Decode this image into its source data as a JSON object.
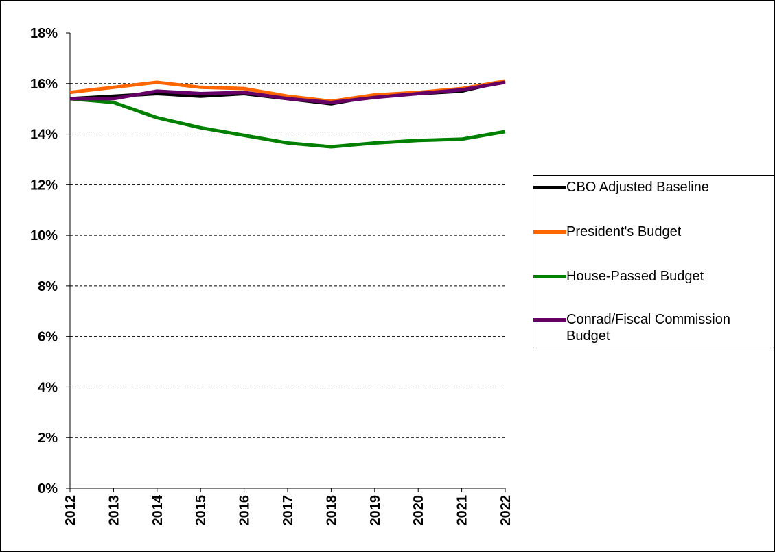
{
  "chart_data": {
    "type": "line",
    "x": [
      "2012",
      "2013",
      "2014",
      "2015",
      "2016",
      "2017",
      "2018",
      "2019",
      "2020",
      "2021",
      "2022"
    ],
    "series": [
      {
        "name": "CBO Adjusted Baseline",
        "color": "#000000",
        "values": [
          15.4,
          15.5,
          15.6,
          15.5,
          15.6,
          15.4,
          15.2,
          15.5,
          15.6,
          15.7,
          16.1
        ]
      },
      {
        "name": "President's Budget",
        "color": "#ff6600",
        "values": [
          15.65,
          15.85,
          16.05,
          15.85,
          15.8,
          15.5,
          15.3,
          15.55,
          15.65,
          15.8,
          16.1
        ]
      },
      {
        "name": "House-Passed Budget",
        "color": "#008000",
        "values": [
          15.4,
          15.25,
          14.65,
          14.25,
          13.95,
          13.65,
          13.5,
          13.65,
          13.75,
          13.8,
          14.1
        ]
      },
      {
        "name": "Conrad/Fiscal Commission Budget",
        "color": "#660066",
        "values": [
          15.4,
          15.4,
          15.7,
          15.6,
          15.65,
          15.4,
          15.25,
          15.45,
          15.6,
          15.75,
          16.05
        ]
      }
    ],
    "ylim": [
      0,
      18
    ],
    "yticks": [
      {
        "value": 0,
        "label": "0%"
      },
      {
        "value": 2,
        "label": "2%"
      },
      {
        "value": 4,
        "label": "4%"
      },
      {
        "value": 6,
        "label": "6%"
      },
      {
        "value": 8,
        "label": "8%"
      },
      {
        "value": 10,
        "label": "10%"
      },
      {
        "value": 12,
        "label": "12%"
      },
      {
        "value": 14,
        "label": "14%"
      },
      {
        "value": 16,
        "label": "16%"
      },
      {
        "value": 18,
        "label": "18%"
      }
    ],
    "grid": true,
    "legend": "right"
  }
}
